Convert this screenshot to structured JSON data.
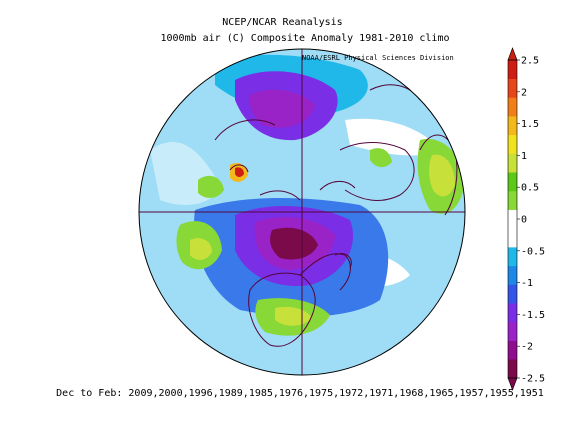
{
  "titles": {
    "line1": "NCEP/NCAR Reanalysis",
    "line2": "1000mb air (C) Composite Anomaly 1981-2010 climo",
    "credit": "NOAA/ESRL Physical Sciences Division",
    "footer": "Dec to Feb: 2009,2000,1996,1989,1985,1976,1975,1972,1971,1968,1965,1957,1955,1951"
  },
  "map": {
    "projection": "north-polar-stereographic",
    "variable": "1000mb air temperature anomaly",
    "units": "C"
  },
  "colorbar": {
    "min": -2.5,
    "max": 2.5,
    "step": 0.5,
    "tick_labels": [
      "2.5",
      "2",
      "1.5",
      "1",
      "0.5",
      "0",
      "-0.5",
      "-1",
      "-1.5",
      "-2",
      "-2.5"
    ],
    "colors": [
      "#7a0a4a",
      "#8e0f8e",
      "#9a23c8",
      "#7a2ee6",
      "#3355e8",
      "#1f88e6",
      "#20b8e8",
      "#ffffff",
      "#ffffff",
      "#88d838",
      "#5cc818",
      "#c8e03a",
      "#f0e21e",
      "#f3b81c",
      "#f07f1a",
      "#e6461a",
      "#cc1e12"
    ]
  },
  "colors": {
    "ocean_base": "#9fdcf5",
    "coast": "#54063a"
  }
}
